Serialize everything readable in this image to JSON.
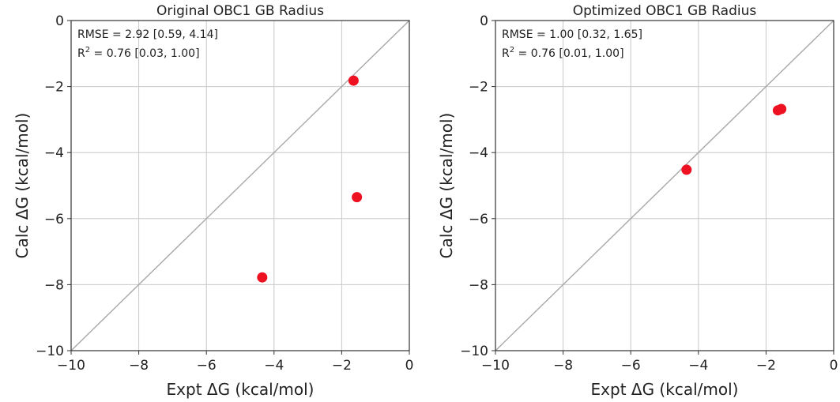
{
  "chart_data": [
    {
      "type": "scatter",
      "title": "Original OBC1 GB Radius",
      "xlabel": "Expt ΔG (kcal/mol)",
      "ylabel": "Calc ΔG (kcal/mol)",
      "xlim": [
        -10,
        0
      ],
      "ylim": [
        -10,
        0
      ],
      "xticks": [
        -10,
        -8,
        -6,
        -4,
        -2,
        0
      ],
      "yticks": [
        0,
        -2,
        -4,
        -6,
        -8,
        -10
      ],
      "x_tick_labels": [
        "−10",
        "−8",
        "−6",
        "−4",
        "−2",
        "0"
      ],
      "y_tick_labels": [
        "0",
        "−2",
        "−4",
        "−6",
        "−8",
        "−10"
      ],
      "grid": true,
      "identity_line": true,
      "annotation": {
        "rmse": "RMSE = 2.92 [0.59, 4.14]",
        "r2_prefix": "R",
        "r2_sup": "2",
        "r2_rest": " = 0.76 [0.03, 1.00]"
      },
      "x": [
        -1.65,
        -1.55,
        -4.35
      ],
      "y": [
        -1.82,
        -5.35,
        -7.78
      ],
      "marker_color": "#ee1122"
    },
    {
      "type": "scatter",
      "title": "Optimized OBC1 GB Radius",
      "xlabel": "Expt ΔG (kcal/mol)",
      "ylabel": "Calc ΔG (kcal/mol)",
      "xlim": [
        -10,
        0
      ],
      "ylim": [
        -10,
        0
      ],
      "xticks": [
        -10,
        -8,
        -6,
        -4,
        -2,
        0
      ],
      "yticks": [
        0,
        -2,
        -4,
        -6,
        -8,
        -10
      ],
      "x_tick_labels": [
        "−10",
        "−8",
        "−6",
        "−4",
        "−2",
        "0"
      ],
      "y_tick_labels": [
        "0",
        "−2",
        "−4",
        "−6",
        "−8",
        "−10"
      ],
      "grid": true,
      "identity_line": true,
      "annotation": {
        "rmse": "RMSE = 1.00 [0.32, 1.65]",
        "r2_prefix": "R",
        "r2_sup": "2",
        "r2_rest": " = 0.76 [0.01, 1.00]"
      },
      "x": [
        -1.65,
        -1.55,
        -4.35
      ],
      "y": [
        -2.72,
        -2.68,
        -4.52
      ],
      "marker_color": "#ee1122"
    }
  ]
}
